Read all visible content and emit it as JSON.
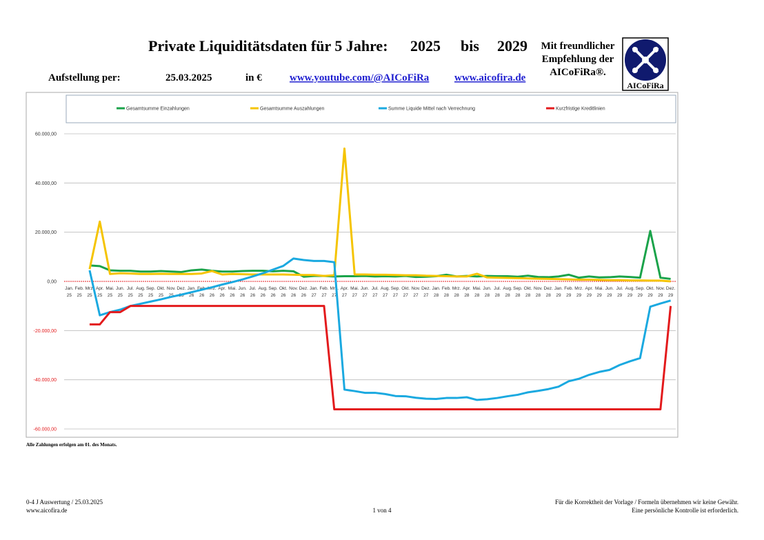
{
  "header": {
    "title": "Private Liquiditätsdaten für 5 Jahre:",
    "year_from": "2025",
    "to": "bis",
    "year_to": "2029",
    "recommendation": [
      "Mit freundlicher",
      "Empfehlung der",
      "AICoFiRa®."
    ],
    "logo_text": "AICoFiRa",
    "as_of_label": "Aufstellung per:",
    "as_of_date": "25.03.2025",
    "currency": "in €",
    "link_youtube": "www.youtube.com/@AICoFiRa",
    "link_site": "www.aicofira.de"
  },
  "chart_data": {
    "type": "line",
    "categories": [
      [
        "Jan.",
        "25"
      ],
      [
        "Feb.",
        "25"
      ],
      [
        "Mrz.",
        "25"
      ],
      [
        "Apr.",
        "25"
      ],
      [
        "Mai.",
        "25"
      ],
      [
        "Jun.",
        "25"
      ],
      [
        "Jul.",
        "25"
      ],
      [
        "Aug.",
        "25"
      ],
      [
        "Sep.",
        "25"
      ],
      [
        "Okt.",
        "25"
      ],
      [
        "Nov.",
        "25"
      ],
      [
        "Dez.",
        "25"
      ],
      [
        "Jan.",
        "26"
      ],
      [
        "Feb.",
        "26"
      ],
      [
        "Mrz.",
        "26"
      ],
      [
        "Apr.",
        "26"
      ],
      [
        "Mai.",
        "26"
      ],
      [
        "Jun.",
        "26"
      ],
      [
        "Jul.",
        "26"
      ],
      [
        "Aug.",
        "26"
      ],
      [
        "Sep.",
        "26"
      ],
      [
        "Okt.",
        "26"
      ],
      [
        "Nov.",
        "26"
      ],
      [
        "Dez.",
        "26"
      ],
      [
        "Jan.",
        "27"
      ],
      [
        "Feb.",
        "27"
      ],
      [
        "Mrz.",
        "27"
      ],
      [
        "Apr.",
        "27"
      ],
      [
        "Mai.",
        "27"
      ],
      [
        "Jun.",
        "27"
      ],
      [
        "Jul.",
        "27"
      ],
      [
        "Aug.",
        "27"
      ],
      [
        "Sep.",
        "27"
      ],
      [
        "Okt.",
        "27"
      ],
      [
        "Nov.",
        "27"
      ],
      [
        "Dez.",
        "27"
      ],
      [
        "Jan.",
        "28"
      ],
      [
        "Feb.",
        "28"
      ],
      [
        "Mrz.",
        "28"
      ],
      [
        "Apr.",
        "28"
      ],
      [
        "Mai.",
        "28"
      ],
      [
        "Jun.",
        "28"
      ],
      [
        "Jul.",
        "28"
      ],
      [
        "Aug.",
        "28"
      ],
      [
        "Sep.",
        "28"
      ],
      [
        "Okt.",
        "28"
      ],
      [
        "Nov.",
        "28"
      ],
      [
        "Dez.",
        "28"
      ],
      [
        "Jan.",
        "29"
      ],
      [
        "Feb.",
        "29"
      ],
      [
        "Mrz.",
        "29"
      ],
      [
        "Apr.",
        "29"
      ],
      [
        "Mai.",
        "29"
      ],
      [
        "Jun.",
        "29"
      ],
      [
        "Jul.",
        "29"
      ],
      [
        "Aug.",
        "29"
      ],
      [
        "Sep.",
        "29"
      ],
      [
        "Okt.",
        "29"
      ],
      [
        "Nov.",
        "29"
      ],
      [
        "Dez.",
        "29"
      ]
    ],
    "series": [
      {
        "name": "Gesamtsumme Einzahlungen",
        "color": "#1aa34a",
        "values": [
          null,
          null,
          6500,
          6200,
          4500,
          4300,
          4300,
          4000,
          4000,
          4200,
          4000,
          3800,
          4500,
          4800,
          4300,
          4000,
          4000,
          4200,
          4300,
          4300,
          4100,
          4300,
          4100,
          1900,
          2200,
          2200,
          2000,
          2100,
          2100,
          2200,
          2000,
          2100,
          2000,
          2200,
          1800,
          1900,
          2100,
          2700,
          2000,
          2200,
          2000,
          2200,
          2100,
          2100,
          1900,
          2300,
          1800,
          1700,
          2000,
          2700,
          1500,
          2000,
          1600,
          1700,
          2000,
          1800,
          1500,
          20500,
          1500,
          1000
        ]
      },
      {
        "name": "Gesamtsumme Auszahlungen",
        "color": "#f5c400",
        "values": [
          null,
          null,
          5000,
          24300,
          3000,
          3300,
          3200,
          3000,
          3000,
          3100,
          3000,
          3000,
          3000,
          3200,
          4200,
          2800,
          3000,
          2900,
          2800,
          2800,
          2800,
          2800,
          2700,
          2600,
          2600,
          2200,
          2500,
          54000,
          2800,
          2800,
          2700,
          2700,
          2600,
          2500,
          2500,
          2300,
          2200,
          2100,
          2000,
          2000,
          3100,
          1600,
          1500,
          1400,
          1300,
          1200,
          1100,
          1000,
          900,
          800,
          700,
          700,
          600,
          500,
          500,
          400,
          400,
          300,
          300,
          0
        ]
      },
      {
        "name": "Summe Liquide Mittel nach Verrechnung",
        "color": "#1aa9e0",
        "values": [
          null,
          null,
          4500,
          -13800,
          -12500,
          -11500,
          -10000,
          -9100,
          -8200,
          -7300,
          -6300,
          -5400,
          -4400,
          -3400,
          -2400,
          -1300,
          -300,
          800,
          2000,
          3300,
          4800,
          6300,
          9300,
          8700,
          8300,
          8300,
          7800,
          -44000,
          -44600,
          -45300,
          -45300,
          -45800,
          -46600,
          -46700,
          -47300,
          -47700,
          -47800,
          -47400,
          -47400,
          -47100,
          -48200,
          -47900,
          -47400,
          -46700,
          -46100,
          -45100,
          -44500,
          -43800,
          -42800,
          -40600,
          -39600,
          -38000,
          -36800,
          -36000,
          -34000,
          -32500,
          -31200,
          -10300,
          -9000,
          -7800
        ]
      },
      {
        "name": "Kurzfristige Kreditlinien",
        "color": "#e31a1c",
        "values": [
          null,
          null,
          -17500,
          -17500,
          -12500,
          -12500,
          -10000,
          -10000,
          -10000,
          -10000,
          -10000,
          -10000,
          -10000,
          -10000,
          -10000,
          -10000,
          -10000,
          -10000,
          -10000,
          -10000,
          -10000,
          -10000,
          -10000,
          -10000,
          -10000,
          -10000,
          -52000,
          -52000,
          -52000,
          -52000,
          -52000,
          -52000,
          -52000,
          -52000,
          -52000,
          -52000,
          -52000,
          -52000,
          -52000,
          -52000,
          -52000,
          -52000,
          -52000,
          -52000,
          -52000,
          -52000,
          -52000,
          -52000,
          -52000,
          -52000,
          -52000,
          -52000,
          -52000,
          -52000,
          -52000,
          -52000,
          -52000,
          -52000,
          -52000,
          -10000
        ]
      }
    ],
    "ylim": [
      -60000,
      60000
    ],
    "yticks": [
      {
        "value": -60000,
        "label": "-60.000,00"
      },
      {
        "value": -40000,
        "label": "-40.000,00"
      },
      {
        "value": -20000,
        "label": "-20.000,00"
      },
      {
        "value": 0,
        "label": "0,00"
      },
      {
        "value": 20000,
        "label": "20.000,00"
      },
      {
        "value": 40000,
        "label": "40.000,00"
      },
      {
        "value": 60000,
        "label": "60.000,00"
      }
    ],
    "grid": true,
    "legend": "top"
  },
  "note": "Alle Zahlungen erfolgen am 01. des Monats.",
  "footer": {
    "left": [
      "0-4 J Auswertung / 25.03.2025",
      "www.aicofira.de"
    ],
    "center": "1 von 4",
    "right": [
      "Für die Korrektheit der Vorlage / Formeln übernehmen wir keine Gewähr.",
      "Eine persönliche Kontrolle ist erforderlich."
    ]
  }
}
